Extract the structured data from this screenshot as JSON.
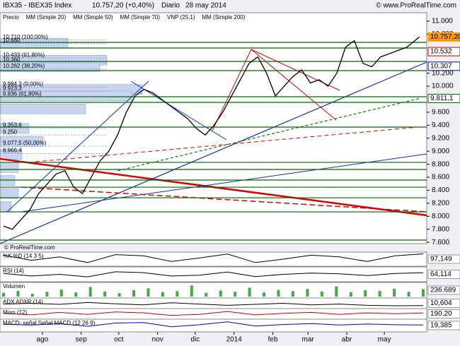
{
  "chart_data": {
    "type": "line",
    "title": "IBX35 - IBEX35 Index",
    "quote": "10.757,20 (+0,40%)",
    "period": "Diario",
    "date": "28 may 2014",
    "source": "© www.ProRealTime.com",
    "watermark": "© ProRealTime.com",
    "x": [
      -31,
      -24,
      -17,
      -10,
      -3,
      4,
      11,
      18,
      25,
      32,
      39,
      46,
      53,
      60,
      67,
      74,
      81,
      88,
      95,
      102,
      109,
      116,
      123,
      130,
      137,
      144,
      151,
      158,
      165,
      172,
      179,
      186,
      193,
      200,
      207,
      214,
      221,
      228,
      235,
      242,
      249,
      256,
      263,
      270,
      277,
      284,
      291,
      301
    ],
    "xlim": [
      -31,
      304
    ],
    "xticks": [
      {
        "value": 0,
        "label": "ago"
      },
      {
        "value": 31,
        "label": "sep"
      },
      {
        "value": 61,
        "label": "oct"
      },
      {
        "value": 92,
        "label": "nov"
      },
      {
        "value": 122,
        "label": "dic"
      },
      {
        "value": 153,
        "label": "2014"
      },
      {
        "value": 184,
        "label": "feb"
      },
      {
        "value": 212,
        "label": "mar"
      },
      {
        "value": 243,
        "label": "abr"
      },
      {
        "value": 273,
        "label": "may"
      }
    ],
    "ylim": [
      7580,
      11130
    ],
    "yticks": [
      {
        "value": 7600,
        "label": "7.600"
      },
      {
        "value": 7800,
        "label": "7.800"
      },
      {
        "value": 8000,
        "label": "8.000"
      },
      {
        "value": 8200,
        "label": "8.200"
      },
      {
        "value": 8400,
        "label": "8.400"
      },
      {
        "value": 8600,
        "label": "8.600"
      },
      {
        "value": 8800,
        "label": "8.800"
      },
      {
        "value": 9000,
        "label": "9.000"
      },
      {
        "value": 9200,
        "label": "9.200"
      },
      {
        "value": 9400,
        "label": "9.400"
      },
      {
        "value": 9600,
        "label": "9.600"
      },
      {
        "value": 10000,
        "label": "10.000"
      },
      {
        "value": 10200,
        "label": "10.200"
      },
      {
        "value": 10800,
        "label": "10.800"
      },
      {
        "value": 11000,
        "label": "11.000"
      }
    ],
    "series": [
      {
        "name": "Precio",
        "color": "#000000",
        "values": [
          7850,
          7800,
          7950,
          8100,
          8350,
          8500,
          8650,
          8700,
          8450,
          8350,
          8600,
          8850,
          9000,
          9250,
          9600,
          9850,
          9950,
          9900,
          9800,
          9700,
          9600,
          9500,
          9350,
          9250,
          9400,
          9600,
          9850,
          10100,
          10350,
          10450,
          10200,
          9850,
          10000,
          10150,
          10250,
          10050,
          10100,
          10000,
          10200,
          10600,
          10700,
          10350,
          10300,
          10450,
          10500,
          10550,
          10600,
          10757.2
        ]
      },
      {
        "name": "MM (Simple 200)",
        "color": "#008000",
        "values": [
          null,
          null,
          null,
          null,
          null,
          null,
          null,
          null,
          null,
          null,
          null,
          null,
          null,
          8700,
          8732,
          8765,
          8797,
          8829,
          8861,
          8894,
          8926,
          8958,
          8990,
          9023,
          9055,
          9087,
          9119,
          9152,
          9184,
          9216,
          9249,
          9281,
          9313,
          9345,
          9378,
          9410,
          9442,
          9474,
          9507,
          9539,
          9571,
          9603,
          9636,
          9668,
          9700,
          9732,
          9765,
          9811
        ]
      }
    ],
    "legend_extra": [
      {
        "name": "MM (Simple 20)",
        "color": "#cc0000"
      },
      {
        "name": "MM (Simple 50)",
        "color": "#888888"
      },
      {
        "name": "MM (Simple 70)",
        "color": "#0000cc"
      }
    ],
    "volume_profile": {
      "name": "VNP (25,1)",
      "color": "#c8d4f0",
      "bars": [
        {
          "price": 10660,
          "volume": 95
        },
        {
          "price": 10400,
          "volume": 150
        },
        {
          "price": 10300,
          "volume": 140
        },
        {
          "price": 9950,
          "volume": 200
        },
        {
          "price": 9850,
          "volume": 185
        },
        {
          "price": 9650,
          "volume": 120
        },
        {
          "price": 9350,
          "volume": 40
        },
        {
          "price": 9150,
          "volume": 60
        },
        {
          "price": 8950,
          "volume": 30
        },
        {
          "price": 8750,
          "volume": 25
        },
        {
          "price": 8550,
          "volume": 20
        },
        {
          "price": 8350,
          "volume": 25
        },
        {
          "price": 8150,
          "volume": 15
        }
      ]
    },
    "levels": {
      "color": "#006600",
      "values": [
        10674,
        10587,
        10381,
        10240,
        9838,
        9751,
        9371,
        8829,
        8720,
        8557,
        8448,
        8285,
        8068,
        7634
      ]
    },
    "annotations": [
      {
        "value": 10710,
        "label": "10.710 (100,00%)"
      },
      {
        "value": 10660,
        "label": "10.660"
      },
      {
        "value": 10433,
        "label": "10.433 (61,80%)"
      },
      {
        "value": 10360,
        "label": "10.360"
      },
      {
        "value": 10262,
        "label": "10.262 (38,20%)"
      },
      {
        "value": 9984.3,
        "label": "9.984,3 (0,00%)"
      },
      {
        "value": 9923.3,
        "label": "9.923,3"
      },
      {
        "value": 9836,
        "label": "9.836 (61,80%)"
      },
      {
        "value": 9353.6,
        "label": "9.353,6"
      },
      {
        "value": 9250,
        "label": "9.250"
      },
      {
        "value": 9077.5,
        "label": "9.077,5 (50,00%)"
      },
      {
        "value": 8966.4,
        "label": "8.966,4"
      }
    ],
    "price_labels": [
      {
        "value": 10757.2,
        "label": "10.757,20",
        "color": "#ff9900"
      },
      {
        "value": 10532,
        "label": "10.532",
        "color": "#cc0000"
      },
      {
        "value": 10307,
        "label": "10.307",
        "color": "#0000cc"
      },
      {
        "value": 9811.1,
        "label": "9.811,1",
        "color": "#006600"
      }
    ],
    "panels": [
      {
        "name": "%K  %D (14 3 5)",
        "kind": "line",
        "color": "#000000",
        "ylim": [
          0,
          100
        ],
        "values": [
          85,
          40,
          70,
          20,
          90,
          80,
          30,
          60,
          95,
          20,
          50,
          85,
          70,
          30,
          80,
          97.149
        ],
        "last_label": "97,149"
      },
      {
        "name": "RSI (14)",
        "kind": "line",
        "color": "#000000",
        "ylim": [
          20,
          90
        ],
        "values": [
          60,
          45,
          55,
          40,
          70,
          65,
          45,
          50,
          68,
          42,
          55,
          62,
          58,
          48,
          60,
          64.114
        ],
        "last_label": "64,114"
      },
      {
        "name": "Volumen",
        "kind": "bar",
        "color": "#44aa44",
        "ylim": [
          0,
          400000
        ],
        "values": [
          120000,
          180000,
          90000,
          150000,
          220000,
          130000,
          300000,
          160000,
          110000,
          200000,
          260000,
          140000,
          170000,
          350000,
          120000,
          190000,
          150000,
          280000,
          130000,
          210000,
          170000,
          240000,
          160000,
          320000,
          140000,
          200000,
          180000,
          250000,
          150000,
          236689
        ],
        "last_label": "236.689"
      },
      {
        "name": "ADX  ADXR (14)",
        "kind": "line",
        "color": "#000000",
        "ylim": [
          0,
          50
        ],
        "values": [
          20,
          25,
          18,
          30,
          22,
          15,
          28,
          20,
          12,
          18,
          25,
          15,
          20,
          12,
          9,
          10.604
        ],
        "last_label": "10,604"
      },
      {
        "name": "Mom (12)",
        "kind": "line",
        "color": "#cc0000",
        "ylim": [
          -800,
          800
        ],
        "values": [
          100,
          -200,
          300,
          -100,
          400,
          200,
          -300,
          -100,
          500,
          -200,
          100,
          300,
          -100,
          200,
          50,
          190.2
        ],
        "last_label": "190,20"
      },
      {
        "name": "MACD- señal  Señal  MACD (12 26 9)",
        "kind": "line",
        "color": "#0000cc",
        "ylim": [
          -200,
          200
        ],
        "values": [
          50,
          20,
          80,
          -30,
          100,
          120,
          -50,
          30,
          150,
          -20,
          40,
          80,
          20,
          60,
          30,
          19.385
        ],
        "last_label": "19,385"
      }
    ]
  }
}
